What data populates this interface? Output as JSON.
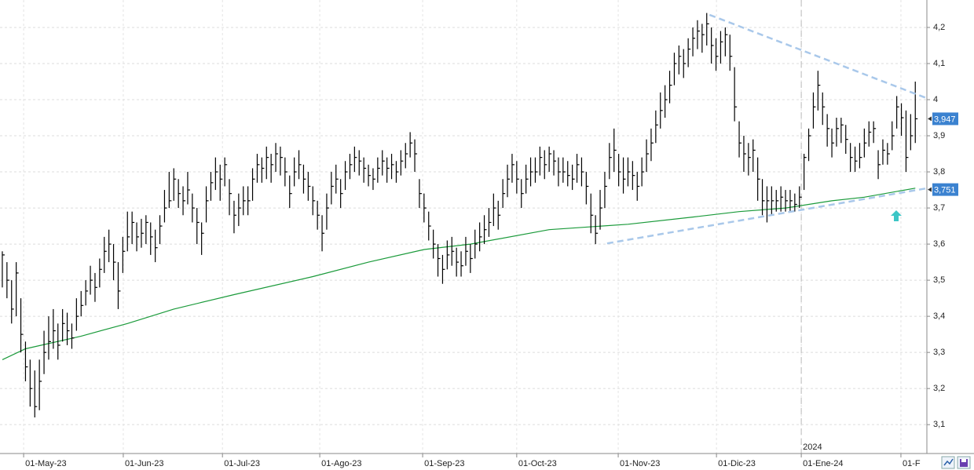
{
  "chart_data": {
    "type": "ohlc",
    "xlim": [
      -0.5,
      199.5
    ],
    "ylim": [
      3.02,
      4.276
    ],
    "yticks": [
      {
        "value": 3.1,
        "label": "3,1"
      },
      {
        "value": 3.2,
        "label": "3,2"
      },
      {
        "value": 3.3,
        "label": "3,3"
      },
      {
        "value": 3.4,
        "label": "3,4"
      },
      {
        "value": 3.5,
        "label": "3,5"
      },
      {
        "value": 3.6,
        "label": "3,6"
      },
      {
        "value": 3.7,
        "label": "3,7"
      },
      {
        "value": 3.8,
        "label": "3,8"
      },
      {
        "value": 3.9,
        "label": "3,9"
      },
      4,
      {
        "value": 4.1,
        "label": "4,1"
      },
      {
        "value": 4.2,
        "label": "4,2"
      }
    ],
    "xticks": [
      {
        "value": 4.6,
        "label": "01-May-23"
      },
      {
        "value": 26.1,
        "label": "01-Jun-23"
      },
      {
        "value": 47.5,
        "label": "01-Jul-23"
      },
      {
        "value": 68.5,
        "label": "01-Ago-23"
      },
      {
        "value": 90.7,
        "label": "01-Sep-23"
      },
      {
        "value": 111,
        "label": "01-Oct-23"
      },
      {
        "value": 132.9,
        "label": "01-Nov-23"
      },
      {
        "value": 154.1,
        "label": "01-Dic-23"
      },
      {
        "value": 172.4,
        "label": "01-Ene-24"
      },
      {
        "value": 193.9,
        "label": "01-F"
      }
    ],
    "grid": true,
    "color": "#000000",
    "bars": [
      [
        3.58,
        3.48,
        3.57
      ],
      [
        3.55,
        3.45,
        3.5
      ],
      [
        3.5,
        3.38,
        3.42
      ],
      [
        3.55,
        3.4,
        3.52
      ],
      [
        3.45,
        3.3,
        3.35
      ],
      [
        3.33,
        3.22,
        3.26
      ],
      [
        3.28,
        3.15,
        3.2
      ],
      [
        3.25,
        3.12,
        3.15
      ],
      [
        3.28,
        3.14,
        3.22
      ],
      [
        3.36,
        3.24,
        3.3
      ],
      [
        3.4,
        3.28,
        3.33
      ],
      [
        3.42,
        3.31,
        3.36
      ],
      [
        3.38,
        3.28,
        3.32
      ],
      [
        3.42,
        3.33,
        3.38
      ],
      [
        3.41,
        3.32,
        3.36
      ],
      [
        3.38,
        3.31,
        3.34
      ],
      [
        3.45,
        3.36,
        3.4
      ],
      [
        3.47,
        3.4,
        3.43
      ],
      [
        3.5,
        3.43,
        3.47
      ],
      [
        3.54,
        3.46,
        3.5
      ],
      [
        3.52,
        3.44,
        3.48
      ],
      [
        3.56,
        3.48,
        3.53
      ],
      [
        3.62,
        3.52,
        3.58
      ],
      [
        3.64,
        3.55,
        3.6
      ],
      [
        3.6,
        3.5,
        3.55
      ],
      [
        3.55,
        3.42,
        3.47
      ],
      [
        3.62,
        3.52,
        3.58
      ],
      [
        3.69,
        3.58,
        3.62
      ],
      [
        3.69,
        3.6,
        3.66
      ],
      [
        3.66,
        3.58,
        3.62
      ],
      [
        3.67,
        3.59,
        3.63
      ],
      [
        3.68,
        3.6,
        3.66
      ],
      [
        3.66,
        3.57,
        3.62
      ],
      [
        3.64,
        3.55,
        3.59
      ],
      [
        3.68,
        3.6,
        3.65
      ],
      [
        3.75,
        3.66,
        3.7
      ],
      [
        3.8,
        3.7,
        3.72
      ],
      [
        3.81,
        3.72,
        3.78
      ],
      [
        3.78,
        3.7,
        3.74
      ],
      [
        3.76,
        3.68,
        3.72
      ],
      [
        3.8,
        3.71,
        3.75
      ],
      [
        3.74,
        3.66,
        3.7
      ],
      [
        3.7,
        3.6,
        3.66
      ],
      [
        3.66,
        3.57,
        3.63
      ],
      [
        3.76,
        3.66,
        3.72
      ],
      [
        3.8,
        3.72,
        3.77
      ],
      [
        3.84,
        3.75,
        3.8
      ],
      [
        3.82,
        3.72,
        3.78
      ],
      [
        3.84,
        3.76,
        3.82
      ],
      [
        3.78,
        3.68,
        3.74
      ],
      [
        3.72,
        3.63,
        3.68
      ],
      [
        3.74,
        3.65,
        3.7
      ],
      [
        3.76,
        3.68,
        3.72
      ],
      [
        3.76,
        3.68,
        3.72
      ],
      [
        3.81,
        3.72,
        3.78
      ],
      [
        3.85,
        3.77,
        3.82
      ],
      [
        3.84,
        3.77,
        3.81
      ],
      [
        3.87,
        3.78,
        3.84
      ],
      [
        3.85,
        3.77,
        3.82
      ],
      [
        3.88,
        3.8,
        3.85
      ],
      [
        3.87,
        3.79,
        3.84
      ],
      [
        3.84,
        3.76,
        3.8
      ],
      [
        3.79,
        3.7,
        3.74
      ],
      [
        3.84,
        3.76,
        3.8
      ],
      [
        3.86,
        3.78,
        3.82
      ],
      [
        3.82,
        3.74,
        3.78
      ],
      [
        3.8,
        3.72,
        3.76
      ],
      [
        3.76,
        3.68,
        3.72
      ],
      [
        3.72,
        3.64,
        3.68
      ],
      [
        3.68,
        3.58,
        3.63
      ],
      [
        3.74,
        3.64,
        3.7
      ],
      [
        3.8,
        3.71,
        3.76
      ],
      [
        3.82,
        3.74,
        3.78
      ],
      [
        3.78,
        3.7,
        3.74
      ],
      [
        3.83,
        3.75,
        3.8
      ],
      [
        3.85,
        3.78,
        3.82
      ],
      [
        3.87,
        3.8,
        3.84
      ],
      [
        3.86,
        3.79,
        3.83
      ],
      [
        3.84,
        3.77,
        3.81
      ],
      [
        3.82,
        3.76,
        3.79
      ],
      [
        3.81,
        3.75,
        3.78
      ],
      [
        3.84,
        3.77,
        3.81
      ],
      [
        3.86,
        3.79,
        3.83
      ],
      [
        3.84,
        3.77,
        3.81
      ],
      [
        3.85,
        3.78,
        3.82
      ],
      [
        3.83,
        3.77,
        3.8
      ],
      [
        3.86,
        3.79,
        3.83
      ],
      [
        3.88,
        3.81,
        3.85
      ],
      [
        3.91,
        3.84,
        3.88
      ],
      [
        3.89,
        3.8,
        3.85
      ],
      [
        3.78,
        3.7,
        3.74
      ],
      [
        3.74,
        3.66,
        3.7
      ],
      [
        3.69,
        3.61,
        3.65
      ],
      [
        3.64,
        3.56,
        3.6
      ],
      [
        3.6,
        3.51,
        3.56
      ],
      [
        3.57,
        3.49,
        3.53
      ],
      [
        3.61,
        3.53,
        3.57
      ],
      [
        3.62,
        3.54,
        3.58
      ],
      [
        3.59,
        3.51,
        3.55
      ],
      [
        3.58,
        3.51,
        3.54
      ],
      [
        3.62,
        3.54,
        3.58
      ],
      [
        3.6,
        3.52,
        3.56
      ],
      [
        3.64,
        3.56,
        3.6
      ],
      [
        3.66,
        3.58,
        3.62
      ],
      [
        3.68,
        3.6,
        3.64
      ],
      [
        3.7,
        3.62,
        3.66
      ],
      [
        3.74,
        3.65,
        3.7
      ],
      [
        3.72,
        3.64,
        3.68
      ],
      [
        3.78,
        3.7,
        3.74
      ],
      [
        3.82,
        3.73,
        3.78
      ],
      [
        3.85,
        3.77,
        3.82
      ],
      [
        3.83,
        3.74,
        3.78
      ],
      [
        3.78,
        3.7,
        3.74
      ],
      [
        3.82,
        3.74,
        3.78
      ],
      [
        3.84,
        3.76,
        3.8
      ],
      [
        3.84,
        3.77,
        3.8
      ],
      [
        3.87,
        3.79,
        3.84
      ],
      [
        3.86,
        3.78,
        3.82
      ],
      [
        3.87,
        3.8,
        3.85
      ],
      [
        3.86,
        3.79,
        3.83
      ],
      [
        3.84,
        3.76,
        3.8
      ],
      [
        3.84,
        3.77,
        3.8
      ],
      [
        3.83,
        3.76,
        3.79
      ],
      [
        3.82,
        3.75,
        3.78
      ],
      [
        3.85,
        3.77,
        3.82
      ],
      [
        3.84,
        3.76,
        3.8
      ],
      [
        3.8,
        3.71,
        3.76
      ],
      [
        3.74,
        3.63,
        3.68
      ],
      [
        3.68,
        3.6,
        3.63
      ],
      [
        3.75,
        3.64,
        3.7
      ],
      [
        3.8,
        3.7,
        3.76
      ],
      [
        3.88,
        3.78,
        3.84
      ],
      [
        3.92,
        3.8,
        3.86
      ],
      [
        3.85,
        3.76,
        3.8
      ],
      [
        3.84,
        3.74,
        3.78
      ],
      [
        3.84,
        3.76,
        3.8
      ],
      [
        3.83,
        3.75,
        3.79
      ],
      [
        3.8,
        3.72,
        3.76
      ],
      [
        3.84,
        3.76,
        3.8
      ],
      [
        3.89,
        3.8,
        3.85
      ],
      [
        3.92,
        3.83,
        3.88
      ],
      [
        3.97,
        3.88,
        3.93
      ],
      [
        4.02,
        3.92,
        3.97
      ],
      [
        4.04,
        3.95,
        4
      ],
      [
        4.08,
        3.99,
        4.04
      ],
      [
        4.13,
        4.04,
        4.1
      ],
      [
        4.15,
        4.07,
        4.12
      ],
      [
        4.14,
        4.06,
        4.1
      ],
      [
        4.17,
        4.09,
        4.14
      ],
      [
        4.2,
        4.12,
        4.17
      ],
      [
        4.22,
        4.14,
        4.19
      ],
      [
        4.21,
        4.13,
        4.18
      ],
      [
        4.24,
        4.15,
        4.21
      ],
      [
        4.2,
        4.1,
        4.15
      ],
      [
        4.17,
        4.08,
        4.12
      ],
      [
        4.19,
        4.1,
        4.16
      ],
      [
        4.2,
        4.12,
        4.18
      ],
      [
        4.18,
        4.08,
        4.12
      ],
      [
        4.09,
        3.94,
        3.98
      ],
      [
        3.94,
        3.84,
        3.88
      ],
      [
        3.9,
        3.8,
        3.85
      ],
      [
        3.88,
        3.79,
        3.84
      ],
      [
        3.89,
        3.8,
        3.86
      ],
      [
        3.84,
        3.72,
        3.78
      ],
      [
        3.78,
        3.68,
        3.72
      ],
      [
        3.76,
        3.66,
        3.72
      ],
      [
        3.76,
        3.68,
        3.72
      ],
      [
        3.75,
        3.69,
        3.72
      ],
      [
        3.76,
        3.69,
        3.73
      ],
      [
        3.75,
        3.69,
        3.72
      ],
      [
        3.75,
        3.69,
        3.72
      ],
      [
        3.74,
        3.69,
        3.71
      ],
      [
        3.76,
        3.7,
        3.73
      ],
      [
        3.85,
        3.75,
        3.84
      ],
      [
        3.92,
        3.83,
        3.9
      ],
      [
        4.02,
        3.92,
        3.98
      ],
      [
        4.08,
        3.97,
        4.04
      ],
      [
        4.02,
        3.93,
        3.98
      ],
      [
        3.96,
        3.87,
        3.92
      ],
      [
        3.92,
        3.84,
        3.88
      ],
      [
        3.95,
        3.87,
        3.92
      ],
      [
        3.95,
        3.88,
        3.93
      ],
      [
        3.93,
        3.85,
        3.89
      ],
      [
        3.88,
        3.8,
        3.84
      ],
      [
        3.87,
        3.8,
        3.83
      ],
      [
        3.88,
        3.81,
        3.84
      ],
      [
        3.92,
        3.84,
        3.88
      ],
      [
        3.94,
        3.87,
        3.91
      ],
      [
        3.94,
        3.88,
        3.92
      ],
      [
        3.86,
        3.78,
        3.82
      ],
      [
        3.89,
        3.82,
        3.86
      ],
      [
        3.88,
        3.82,
        3.85
      ],
      [
        3.94,
        3.86,
        3.9
      ],
      [
        4.01,
        3.92,
        3.98
      ],
      [
        3.99,
        3.9,
        3.95
      ],
      [
        3.97,
        3.8,
        3.84
      ],
      [
        3.96,
        3.86,
        3.9
      ],
      [
        4.05,
        3.88,
        3.947
      ]
    ],
    "moving_average": {
      "color": "#1a9a3a",
      "x": [
        0,
        5,
        17,
        27,
        37,
        50,
        67,
        79,
        91,
        101,
        118,
        135,
        149,
        159,
        169,
        179,
        186,
        197
      ],
      "values": [
        3.28,
        3.31,
        3.345,
        3.38,
        3.42,
        3.46,
        3.51,
        3.55,
        3.585,
        3.6,
        3.64,
        3.655,
        3.675,
        3.69,
        3.7,
        3.72,
        3.73,
        3.755
      ]
    },
    "trendlines": {
      "color": "#a9c8ea",
      "lines": [
        {
          "x": [
            152.6,
            201.7
          ],
          "values": [
            4.235,
            3.993
          ]
        },
        {
          "x": [
            130.5,
            202.4
          ],
          "values": [
            3.602,
            3.761
          ]
        }
      ]
    },
    "markers": [
      {
        "value": 3.947,
        "label": "3,947"
      },
      {
        "value": 3.751,
        "label": "3,751"
      }
    ],
    "year_marker": {
      "value": 172.4,
      "label": "2024"
    }
  }
}
